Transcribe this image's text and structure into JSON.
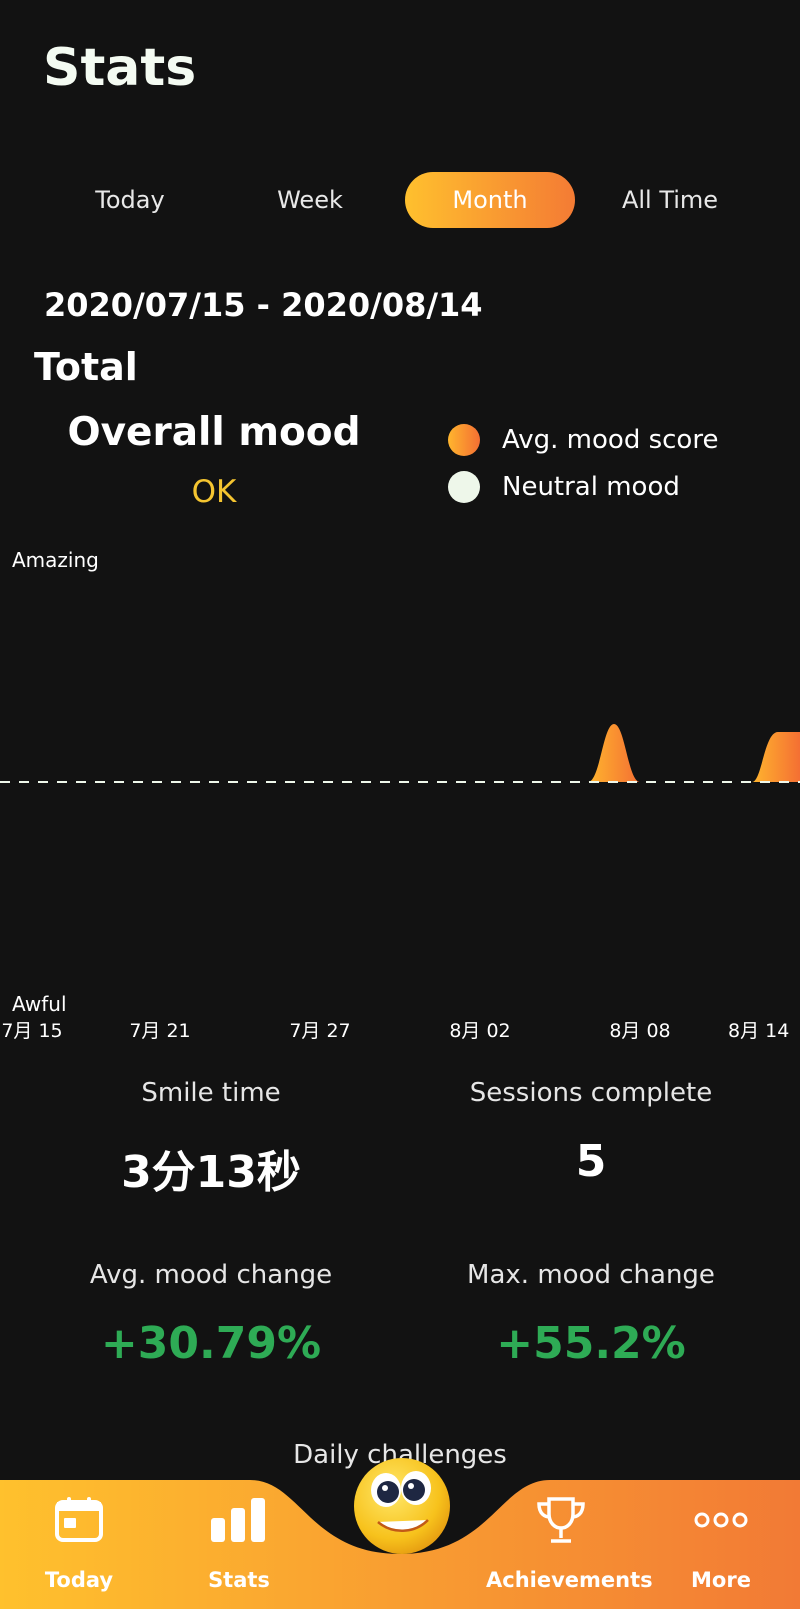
{
  "header": {
    "title": "Stats"
  },
  "tabs": [
    {
      "label": "Today",
      "active": false
    },
    {
      "label": "Week",
      "active": false
    },
    {
      "label": "Month",
      "active": true
    },
    {
      "label": "All Time",
      "active": false
    }
  ],
  "date_range": "2020/07/15 - 2020/08/14",
  "section_title": "Total",
  "overall_mood": {
    "label": "Overall mood",
    "value": "OK"
  },
  "legend": [
    {
      "label": "Avg. mood score",
      "color": "#f7902f"
    },
    {
      "label": "Neutral mood",
      "color": "#eef7ea"
    }
  ],
  "chart_data": {
    "type": "area",
    "y_top_label": "Amazing",
    "y_bottom_label": "Awful",
    "x_ticks": [
      "7月 15",
      "7月 21",
      "7月 27",
      "8月 02",
      "8月 08",
      "8月 14"
    ],
    "baseline": "Neutral mood",
    "series": [
      {
        "name": "Avg. mood score",
        "points": [
          {
            "x": "8月 07",
            "y": 0.15
          },
          {
            "x": "8月 13",
            "y": 0.13
          },
          {
            "x": "8月 14",
            "y": 0.13
          }
        ]
      }
    ],
    "accent": [
      "#ffb52e",
      "#f46f33"
    ]
  },
  "stats": {
    "smile_time": {
      "label": "Smile time",
      "value": "3分13秒"
    },
    "sessions": {
      "label": "Sessions complete",
      "value": "5"
    },
    "avg_change": {
      "label": "Avg. mood change",
      "value": "+30.79%"
    },
    "max_change": {
      "label": "Max. mood change",
      "value": "+55.2%"
    }
  },
  "daily_challenges": "Daily challenges",
  "nav": {
    "items": [
      {
        "label": "Today",
        "icon": "calendar-icon"
      },
      {
        "label": "Stats",
        "icon": "bar-chart-icon"
      },
      {
        "label": "Achievements",
        "icon": "trophy-icon"
      },
      {
        "label": "More",
        "icon": "more-icon"
      }
    ],
    "center_icon": "mascot-smiley-icon",
    "gradient": [
      "#ffc12d",
      "#f27a35"
    ]
  }
}
